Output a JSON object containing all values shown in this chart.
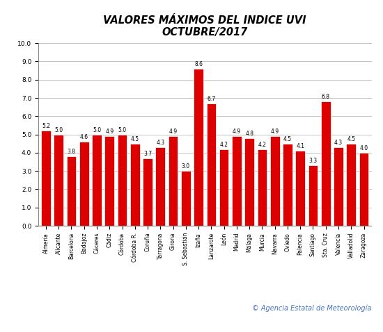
{
  "title_line1": "VALORES MÁXIMOS DEL INDICE UVI",
  "title_line2": "OCTUBRE/2017",
  "categories": [
    "Almería",
    "Alicante",
    "Barcelona",
    "Badajoz",
    "Cáceres",
    "Cádiz",
    "Córdoba",
    "Córdoba R.",
    "Coruña",
    "Tarragona",
    "Girona",
    "S. Sebastián",
    "Izaña",
    "Lanzarote",
    "León",
    "Madrid",
    "Málaga",
    "Murcia",
    "Navarra",
    "Oviedo",
    "Palencia",
    "Santiago",
    "Sta. Cruz",
    "Valencia",
    "Valladolid",
    "Zaragoza"
  ],
  "values": [
    5.2,
    5.0,
    3.8,
    4.6,
    5.0,
    4.9,
    5.0,
    4.5,
    3.7,
    4.3,
    4.9,
    3.0,
    8.6,
    6.7,
    4.2,
    4.9,
    4.8,
    4.2,
    4.9,
    4.5,
    4.1,
    3.3,
    6.8,
    4.3,
    4.5,
    4.0
  ],
  "bar_color": "#dd0000",
  "bar_edge_color": "#ffffff",
  "ylim": [
    0,
    10.0
  ],
  "yticks": [
    0.0,
    1.0,
    2.0,
    3.0,
    4.0,
    5.0,
    6.0,
    7.0,
    8.0,
    9.0,
    10.0
  ],
  "grid_color": "#aaaaaa",
  "bg_color": "#ffffff",
  "plot_bg_color": "#ffffff",
  "title_fontsize": 10.5,
  "label_fontsize": 5.5,
  "value_fontsize": 5.5,
  "ytick_fontsize": 6.5,
  "copyright_text": "© Agencia Estatal de Meteorología",
  "copyright_color": "#4472c4"
}
